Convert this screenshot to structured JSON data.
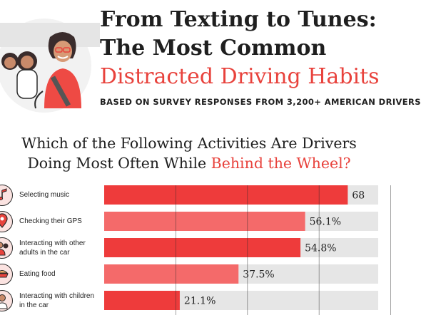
{
  "header": {
    "title_line1": "From Texting to Tunes:",
    "title_line2": "The Most Common",
    "title_line3": "Distracted Driving Habits",
    "subtitle": "BASED ON SURVEY RESPONSES FROM 3,200+ AMERICAN DRIVERS"
  },
  "question": {
    "part1": "Which of the Following Activities Are Drivers",
    "part2": "Doing Most Often While ",
    "highlight": "Behind the Wheel?"
  },
  "icons": [
    "music-note-icon",
    "map-pin-icon",
    "adults-icon",
    "food-icon",
    "child-icon"
  ],
  "colors": {
    "accent": "#e8423c",
    "bar_dark": "#ee3b3b",
    "bar_light": "#f46a6a",
    "track": "#e6e6e6"
  },
  "chart_data": {
    "type": "bar",
    "orientation": "horizontal",
    "categories": [
      "Selecting music",
      "Checking their GPS",
      "Interacting with other adults in the car",
      "Eating food",
      "Interacting with children in the car"
    ],
    "values": [
      68,
      56.1,
      54.8,
      37.5,
      21.1
    ],
    "value_labels": [
      "68",
      "56.1%",
      "54.8%",
      "37.5%",
      "21.1%"
    ],
    "xlim": [
      0,
      100
    ],
    "grid": true
  }
}
